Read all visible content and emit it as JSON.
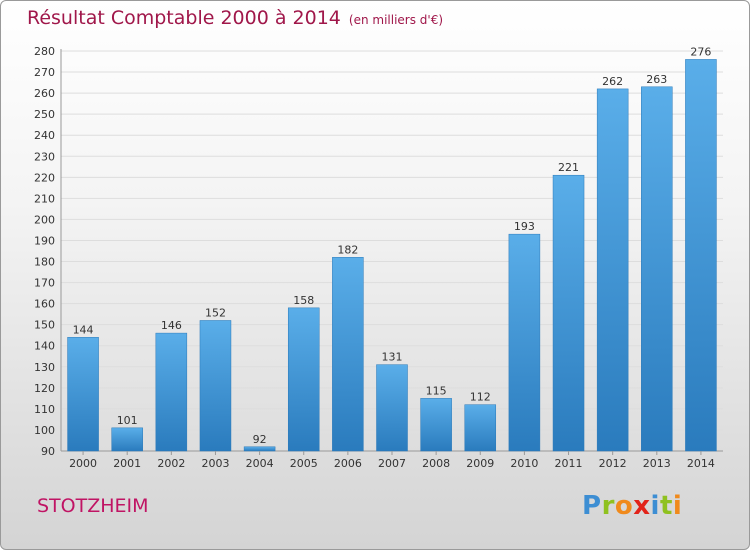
{
  "title": "Résultat Comptable 2000 à 2014",
  "subtitle": "(en milliers d'€)",
  "commune": "STOTZHEIM",
  "logo": {
    "letters": [
      {
        "char": "P",
        "color": "#3d8ed3"
      },
      {
        "char": "r",
        "color": "#8fc11f"
      },
      {
        "char": "o",
        "color": "#f08a1c"
      },
      {
        "char": "x",
        "color": "#e2231a"
      },
      {
        "char": "i",
        "color": "#3d8ed3"
      },
      {
        "char": "t",
        "color": "#8fc11f"
      },
      {
        "char": "i",
        "color": "#f08a1c"
      }
    ]
  },
  "colors": {
    "title": "#a0174a",
    "bar_top": "#5aaee9",
    "bar_bottom": "#2a7bbd",
    "grid": "#dddddd",
    "text": "#333333"
  },
  "chart_data": {
    "type": "bar",
    "categories": [
      "2000",
      "2001",
      "2002",
      "2003",
      "2004",
      "2005",
      "2006",
      "2007",
      "2008",
      "2009",
      "2010",
      "2011",
      "2012",
      "2013",
      "2014"
    ],
    "values": [
      144,
      101,
      146,
      152,
      92,
      158,
      182,
      131,
      115,
      112,
      193,
      221,
      262,
      263,
      276
    ],
    "ylim": [
      90,
      280
    ],
    "ytick_step": 10,
    "grid": true,
    "data_labels": true
  }
}
